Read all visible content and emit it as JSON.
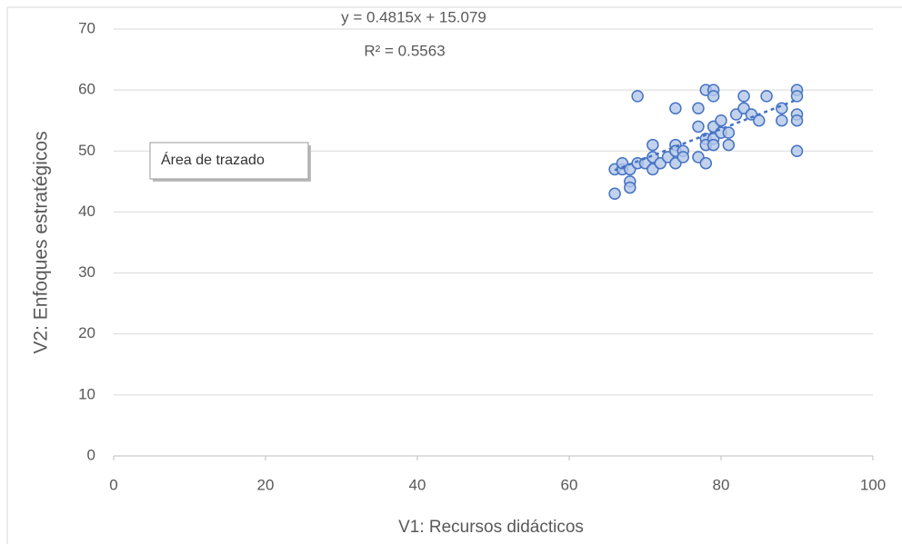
{
  "chart_data": {
    "type": "scatter",
    "x_label": "V1: Recursos didácticos",
    "y_label": "V2: Enfoques estratégicos",
    "annotation": "Área de trazado",
    "trendline": {
      "slope": 0.4815,
      "intercept": 15.079,
      "equation": "y = 0.4815x + 15.079",
      "r_squared": 0.5563,
      "r_squared_label": "R² = 0.5563"
    },
    "series": [
      {
        "name": "V2",
        "color": "#4472c4",
        "x": [
          66,
          66,
          67,
          67,
          68,
          68,
          68,
          69,
          69,
          70,
          71,
          71,
          71,
          72,
          73,
          74,
          74,
          74,
          74,
          75,
          75,
          77,
          77,
          77,
          78,
          78,
          78,
          78,
          79,
          79,
          79,
          79,
          79,
          80,
          80,
          81,
          81,
          82,
          83,
          83,
          84,
          85,
          86,
          88,
          88,
          90,
          90,
          90,
          90,
          90
        ],
        "values": [
          47,
          43,
          47,
          48,
          47,
          45,
          44,
          59,
          48,
          48,
          47,
          51,
          49,
          48,
          49,
          51,
          50,
          48,
          57,
          50,
          49,
          54,
          57,
          49,
          60,
          52,
          51,
          48,
          60,
          59,
          54,
          52,
          51,
          55,
          53,
          53,
          51,
          56,
          59,
          57,
          56,
          55,
          59,
          57,
          55,
          60,
          59,
          56,
          55,
          50
        ]
      }
    ],
    "xlim": [
      0,
      100
    ],
    "xticks": [
      0,
      20,
      40,
      60,
      80,
      100
    ],
    "ylim": [
      0,
      70
    ],
    "yticks": [
      0,
      10,
      20,
      30,
      40,
      50,
      60,
      70
    ],
    "grid": true
  }
}
